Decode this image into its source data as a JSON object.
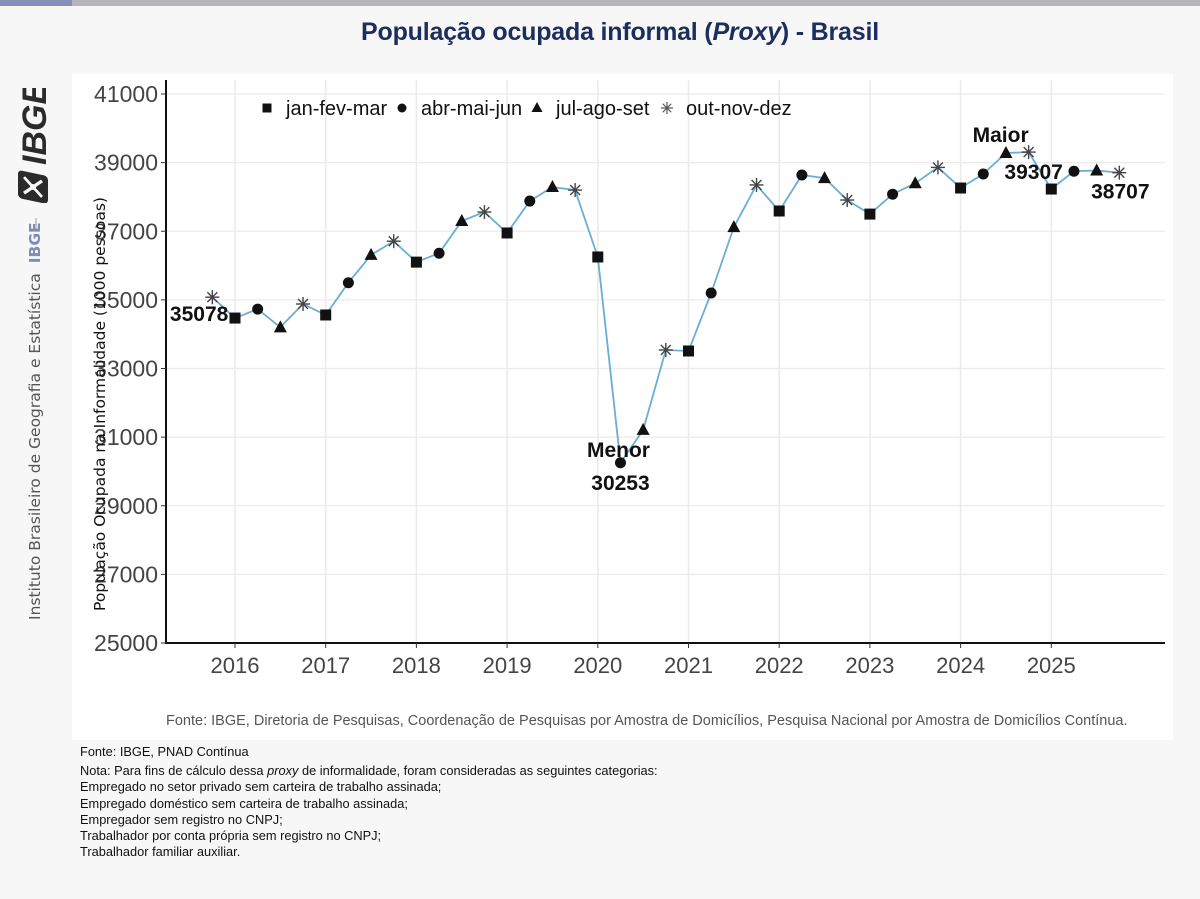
{
  "page": {
    "title_prefix": "População ocupada informal (",
    "title_italic": "Proxy",
    "title_suffix": ") - Brasil",
    "brand": {
      "logo_text": "IBGE",
      "institute": "Instituto Brasileiro de Geografia e Estatística",
      "short": "IBGE"
    },
    "colors": {
      "title": "#1c2e5e",
      "line": "#6aaed6",
      "topbar_accent": "#8690b8",
      "topbar": "#b5b5ba"
    },
    "footer": {
      "fonte": "Fonte: IBGE, PNAD Contínua",
      "nota_prefix": "Nota: Para fins de cálculo dessa ",
      "nota_italic": "proxy",
      "nota_suffix": " de informalidade, foram consideradas as seguintes categorias:",
      "categories": [
        "Empregado no setor privado sem carteira de trabalho assinada;",
        "Empregado doméstico sem carteira de trabalho assinada;",
        "Empregador sem registro no CNPJ;",
        "Trabalhador por conta própria sem registro no CNPJ;",
        "Trabalhador familiar auxiliar."
      ]
    }
  },
  "chart_data": {
    "type": "line",
    "title": "População ocupada informal (Proxy) - Brasil",
    "xlabel": "",
    "ylabel": "População Ocupada na Informalidade (1000 pessoas)",
    "ylim": [
      25000,
      41000
    ],
    "yticks": [
      "25000",
      "27000",
      "29000",
      "31000",
      "33000",
      "35000",
      "37000",
      "39000",
      "41000"
    ],
    "xticks": [
      "2016",
      "2017",
      "2018",
      "2019",
      "2020",
      "2021",
      "2022",
      "2023",
      "2024",
      "2025"
    ],
    "xlim": [
      2015.5,
      2026.2
    ],
    "grid": true,
    "legend_position": "top-center",
    "legend": [
      {
        "label": "jan-fev-mar",
        "marker": "square"
      },
      {
        "label": "abr-mai-jun",
        "marker": "circle"
      },
      {
        "label": "jul-ago-set",
        "marker": "triangle"
      },
      {
        "label": "out-nov-dez",
        "marker": "asterisk"
      }
    ],
    "source_note": "Fonte: IBGE, Diretoria de Pesquisas, Coordenação de Pesquisas por Amostra de Domicílios, Pesquisa Nacional por Amostra de Domicílios Contínua.",
    "points": [
      {
        "period": "out-nov-dez 2015",
        "q": 4,
        "x": 2015.75,
        "y": 35078
      },
      {
        "period": "jan-fev-mar 2016",
        "q": 1,
        "x": 2016.0,
        "y": 34470
      },
      {
        "period": "abr-mai-jun 2016",
        "q": 2,
        "x": 2016.25,
        "y": 34730
      },
      {
        "period": "jul-ago-set 2016",
        "q": 3,
        "x": 2016.5,
        "y": 34200
      },
      {
        "period": "out-nov-dez 2016",
        "q": 4,
        "x": 2016.75,
        "y": 34880
      },
      {
        "period": "jan-fev-mar 2017",
        "q": 1,
        "x": 2017.0,
        "y": 34560
      },
      {
        "period": "abr-mai-jun 2017",
        "q": 2,
        "x": 2017.25,
        "y": 35500
      },
      {
        "period": "jul-ago-set 2017",
        "q": 3,
        "x": 2017.5,
        "y": 36310
      },
      {
        "period": "out-nov-dez 2017",
        "q": 4,
        "x": 2017.75,
        "y": 36710
      },
      {
        "period": "jan-fev-mar 2018",
        "q": 1,
        "x": 2018.0,
        "y": 36100
      },
      {
        "period": "abr-mai-jun 2018",
        "q": 2,
        "x": 2018.25,
        "y": 36360
      },
      {
        "period": "jul-ago-set 2018",
        "q": 3,
        "x": 2018.5,
        "y": 37300
      },
      {
        "period": "out-nov-dez 2018",
        "q": 4,
        "x": 2018.75,
        "y": 37560
      },
      {
        "period": "jan-fev-mar 2019",
        "q": 1,
        "x": 2019.0,
        "y": 36950
      },
      {
        "period": "abr-mai-jun 2019",
        "q": 2,
        "x": 2019.25,
        "y": 37880
      },
      {
        "period": "jul-ago-set 2019",
        "q": 3,
        "x": 2019.5,
        "y": 38290
      },
      {
        "period": "out-nov-dez 2019",
        "q": 4,
        "x": 2019.75,
        "y": 38200
      },
      {
        "period": "jan-fev-mar 2020",
        "q": 1,
        "x": 2020.0,
        "y": 36250
      },
      {
        "period": "abr-mai-jun 2020",
        "q": 2,
        "x": 2020.25,
        "y": 30253
      },
      {
        "period": "jul-ago-set 2020",
        "q": 3,
        "x": 2020.5,
        "y": 31210
      },
      {
        "period": "out-nov-dez 2020",
        "q": 4,
        "x": 2020.75,
        "y": 33540
      },
      {
        "period": "jan-fev-mar 2021",
        "q": 1,
        "x": 2021.0,
        "y": 33510
      },
      {
        "period": "abr-mai-jun 2021",
        "q": 2,
        "x": 2021.25,
        "y": 35200
      },
      {
        "period": "jul-ago-set 2021",
        "q": 3,
        "x": 2021.5,
        "y": 37120
      },
      {
        "period": "out-nov-dez 2021",
        "q": 4,
        "x": 2021.75,
        "y": 38350
      },
      {
        "period": "jan-fev-mar 2022",
        "q": 1,
        "x": 2022.0,
        "y": 37590
      },
      {
        "period": "abr-mai-jun 2022",
        "q": 2,
        "x": 2022.25,
        "y": 38640
      },
      {
        "period": "jul-ago-set 2022",
        "q": 3,
        "x": 2022.5,
        "y": 38550
      },
      {
        "period": "out-nov-dez 2022",
        "q": 4,
        "x": 2022.75,
        "y": 37910
      },
      {
        "period": "jan-fev-mar 2023",
        "q": 1,
        "x": 2023.0,
        "y": 37500
      },
      {
        "period": "abr-mai-jun 2023",
        "q": 2,
        "x": 2023.25,
        "y": 38080
      },
      {
        "period": "jul-ago-set 2023",
        "q": 3,
        "x": 2023.5,
        "y": 38400
      },
      {
        "period": "out-nov-dez 2023",
        "q": 4,
        "x": 2023.75,
        "y": 38860
      },
      {
        "period": "jan-fev-mar 2024",
        "q": 1,
        "x": 2024.0,
        "y": 38260
      },
      {
        "period": "abr-mai-jun 2024",
        "q": 2,
        "x": 2024.25,
        "y": 38670
      },
      {
        "period": "jul-ago-set 2024",
        "q": 3,
        "x": 2024.5,
        "y": 39280
      },
      {
        "period": "out-nov-dez 2024",
        "q": 4,
        "x": 2024.75,
        "y": 39307
      },
      {
        "period": "jan-fev-mar 2025",
        "q": 1,
        "x": 2025.0,
        "y": 38230
      },
      {
        "period": "abr-mai-jun 2025",
        "q": 2,
        "x": 2025.25,
        "y": 38750
      },
      {
        "period": "jul-ago-set 2025",
        "q": 3,
        "x": 2025.5,
        "y": 38770
      },
      {
        "period": "out-nov-dez 2025",
        "q": 4,
        "x": 2025.75,
        "y": 38707
      }
    ],
    "annotations": [
      {
        "name": "first-value",
        "text": "35078",
        "x": 2015.75,
        "y": 35078,
        "anchor": "left-of"
      },
      {
        "name": "min-label",
        "text": "Menor",
        "x": 2020.25,
        "y": 30253,
        "anchor": "above"
      },
      {
        "name": "min-value",
        "text": "30253",
        "x": 2020.25,
        "y": 30253,
        "anchor": "below"
      },
      {
        "name": "max-label",
        "text": "Maior",
        "x": 2024.75,
        "y": 39307,
        "anchor": "above"
      },
      {
        "name": "max-value",
        "text": "39307",
        "x": 2024.75,
        "y": 39307,
        "anchor": "below"
      },
      {
        "name": "last-value",
        "text": "38707",
        "x": 2025.75,
        "y": 38707,
        "anchor": "below"
      }
    ]
  }
}
